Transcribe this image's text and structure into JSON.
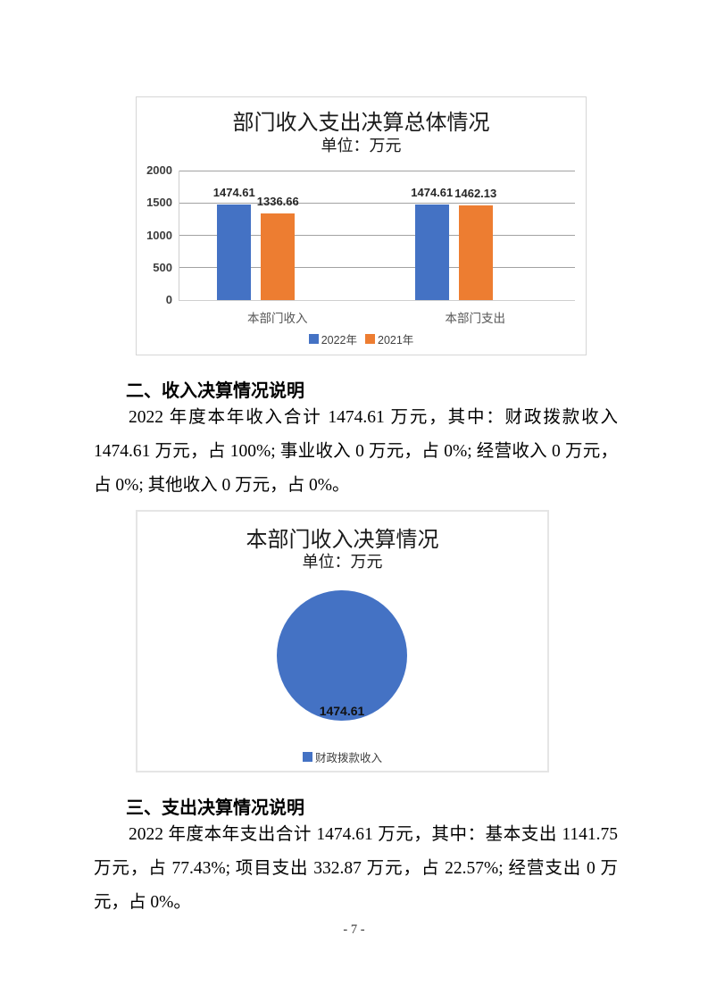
{
  "page": {
    "footer": "- 7 -"
  },
  "sections": [
    {
      "heading": "二、收入决算情况说明",
      "body": "2022 年度本年收入合计 1474.61 万元，其中：财政拨款收入 1474.61 万元，占 100%; 事业收入 0 万元，占 0%; 经营收入 0 万元，占 0%; 其他收入 0 万元，占 0%。"
    },
    {
      "heading": "三、支出决算情况说明",
      "body": "2022 年度本年支出合计 1474.61 万元，其中：基本支出 1141.75 万元，占 77.43%; 项目支出 332.87 万元，占 22.57%; 经营支出 0 万元，占 0%。"
    }
  ],
  "chart_data": [
    {
      "type": "bar",
      "title": "部门收入支出决算总体情况",
      "subtitle": "单位：万元",
      "categories": [
        "本部门收入",
        "本部门支出"
      ],
      "series": [
        {
          "name": "2022年",
          "color": "#4472C4",
          "values": [
            1474.61,
            1474.61
          ]
        },
        {
          "name": "2021年",
          "color": "#ED7D31",
          "values": [
            1336.66,
            1462.13
          ]
        }
      ],
      "y_ticks": [
        2000,
        1500,
        1000,
        500,
        0
      ],
      "ylim": [
        0,
        2000
      ],
      "grid": true,
      "legend_position": "bottom",
      "value_labels": true
    },
    {
      "type": "pie",
      "title": "本部门收入决算情况",
      "subtitle": "单位：万元",
      "slices": [
        {
          "label": "财政拨款收入",
          "value": 1474.61,
          "color": "#4472C4"
        }
      ],
      "legend_position": "bottom"
    }
  ]
}
